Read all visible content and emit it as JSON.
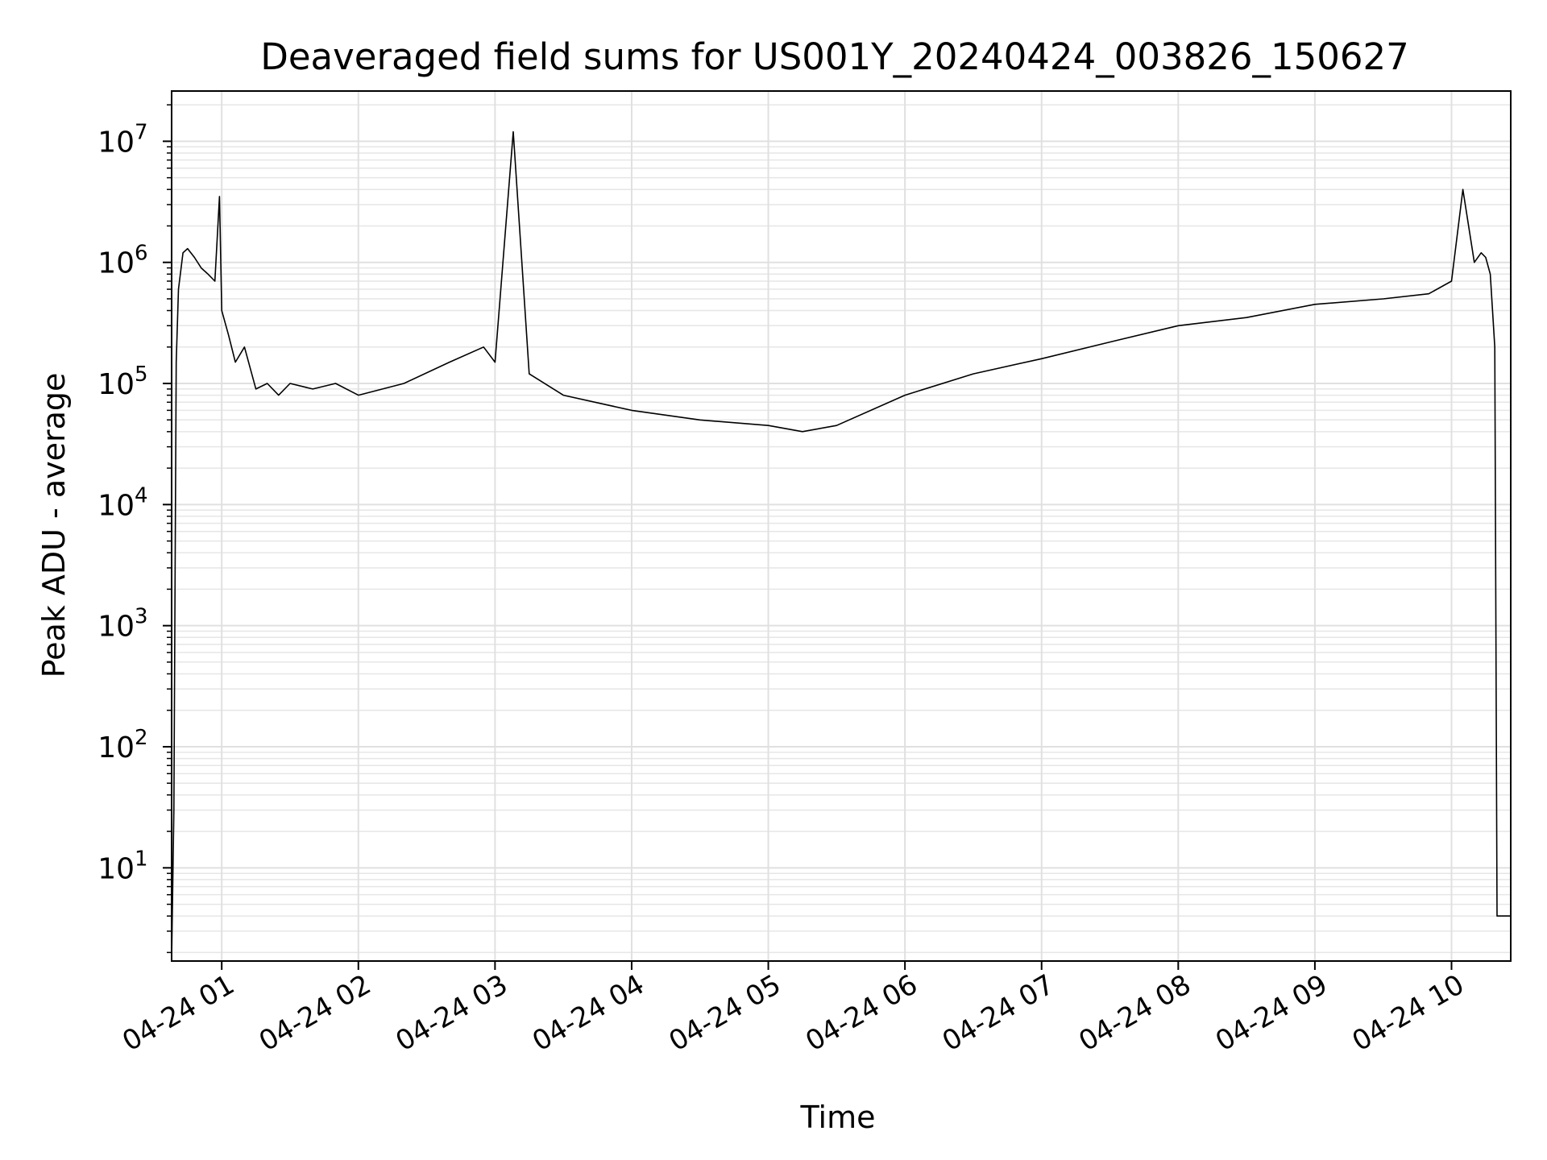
{
  "chart_data": {
    "type": "line",
    "title": "Deaveraged field sums for US001Y_20240424_003826_150627",
    "xlabel": "Time",
    "ylabel": "Peak ADU - average",
    "yscale": "log",
    "grid": true,
    "ylim": [
      1.7,
      26000000
    ],
    "xlim": [
      "2024-04-24T00:38",
      "2024-04-24T10:26"
    ],
    "x_ticks": [
      "04-24 01",
      "04-24 02",
      "04-24 03",
      "04-24 04",
      "04-24 05",
      "04-24 06",
      "04-24 07",
      "04-24 08",
      "04-24 09",
      "04-24 10"
    ],
    "y_ticks": [
      {
        "value": 10,
        "base": "10",
        "exp": "1"
      },
      {
        "value": 100,
        "base": "10",
        "exp": "2"
      },
      {
        "value": 1000,
        "base": "10",
        "exp": "3"
      },
      {
        "value": 10000,
        "base": "10",
        "exp": "4"
      },
      {
        "value": 100000,
        "base": "10",
        "exp": "5"
      },
      {
        "value": 1000000,
        "base": "10",
        "exp": "6"
      },
      {
        "value": 10000000,
        "base": "10",
        "exp": "7"
      }
    ],
    "series": [
      {
        "x": [
          "2024-04-24T00:38",
          "2024-04-24T00:39",
          "2024-04-24T00:40",
          "2024-04-24T00:41",
          "2024-04-24T00:43",
          "2024-04-24T00:45",
          "2024-04-24T00:48",
          "2024-04-24T00:51",
          "2024-04-24T00:54",
          "2024-04-24T00:57",
          "2024-04-24T00:59",
          "2024-04-24T01:00",
          "2024-04-24T01:03",
          "2024-04-24T01:06",
          "2024-04-24T01:10",
          "2024-04-24T01:15",
          "2024-04-24T01:20",
          "2024-04-24T01:25",
          "2024-04-24T01:30",
          "2024-04-24T01:40",
          "2024-04-24T01:50",
          "2024-04-24T02:00",
          "2024-04-24T02:20",
          "2024-04-24T02:40",
          "2024-04-24T02:55",
          "2024-04-24T03:00",
          "2024-04-24T03:08",
          "2024-04-24T03:15",
          "2024-04-24T03:30",
          "2024-04-24T04:00",
          "2024-04-24T04:30",
          "2024-04-24T05:00",
          "2024-04-24T05:15",
          "2024-04-24T05:30",
          "2024-04-24T06:00",
          "2024-04-24T06:30",
          "2024-04-24T07:00",
          "2024-04-24T07:30",
          "2024-04-24T08:00",
          "2024-04-24T08:30",
          "2024-04-24T09:00",
          "2024-04-24T09:30",
          "2024-04-24T09:50",
          "2024-04-24T10:00",
          "2024-04-24T10:05",
          "2024-04-24T10:10",
          "2024-04-24T10:13",
          "2024-04-24T10:15",
          "2024-04-24T10:17",
          "2024-04-24T10:19",
          "2024-04-24T10:20",
          "2024-04-24T10:26"
        ],
        "y": [
          1.7,
          30,
          150000,
          600000,
          1200000,
          1300000,
          1100000,
          900000,
          800000,
          700000,
          3500000,
          400000,
          250000,
          150000,
          200000,
          90000,
          100000,
          80000,
          100000,
          90000,
          100000,
          80000,
          100000,
          150000,
          200000,
          150000,
          12000000,
          120000,
          80000,
          60000,
          50000,
          45000,
          40000,
          45000,
          80000,
          120000,
          160000,
          220000,
          300000,
          350000,
          450000,
          500000,
          550000,
          700000,
          4000000,
          1000000,
          1200000,
          1100000,
          800000,
          200000,
          4,
          4
        ]
      }
    ]
  }
}
